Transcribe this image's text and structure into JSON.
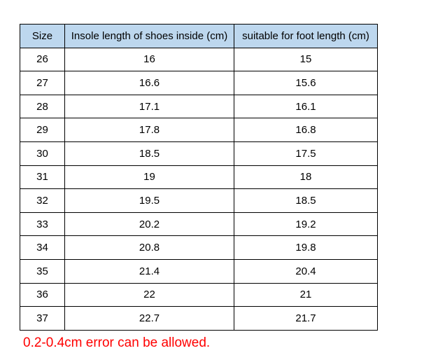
{
  "table": {
    "headers": [
      "Size",
      "Insole length of shoes inside (cm)",
      "suitable for foot length (cm)"
    ],
    "rows": [
      [
        "26",
        "16",
        "15"
      ],
      [
        "27",
        "16.6",
        "15.6"
      ],
      [
        "28",
        "17.1",
        "16.1"
      ],
      [
        "29",
        "17.8",
        "16.8"
      ],
      [
        "30",
        "18.5",
        "17.5"
      ],
      [
        "31",
        "19",
        "18"
      ],
      [
        "32",
        "19.5",
        "18.5"
      ],
      [
        "33",
        "20.2",
        "19.2"
      ],
      [
        "34",
        "20.8",
        "19.8"
      ],
      [
        "35",
        "21.4",
        "20.4"
      ],
      [
        "36",
        "22",
        "21"
      ],
      [
        "37",
        "22.7",
        "21.7"
      ]
    ],
    "header_color": "#bdd7ee"
  },
  "note": "0.2-0.4cm error can be allowed.",
  "note_color": "#ff0000"
}
